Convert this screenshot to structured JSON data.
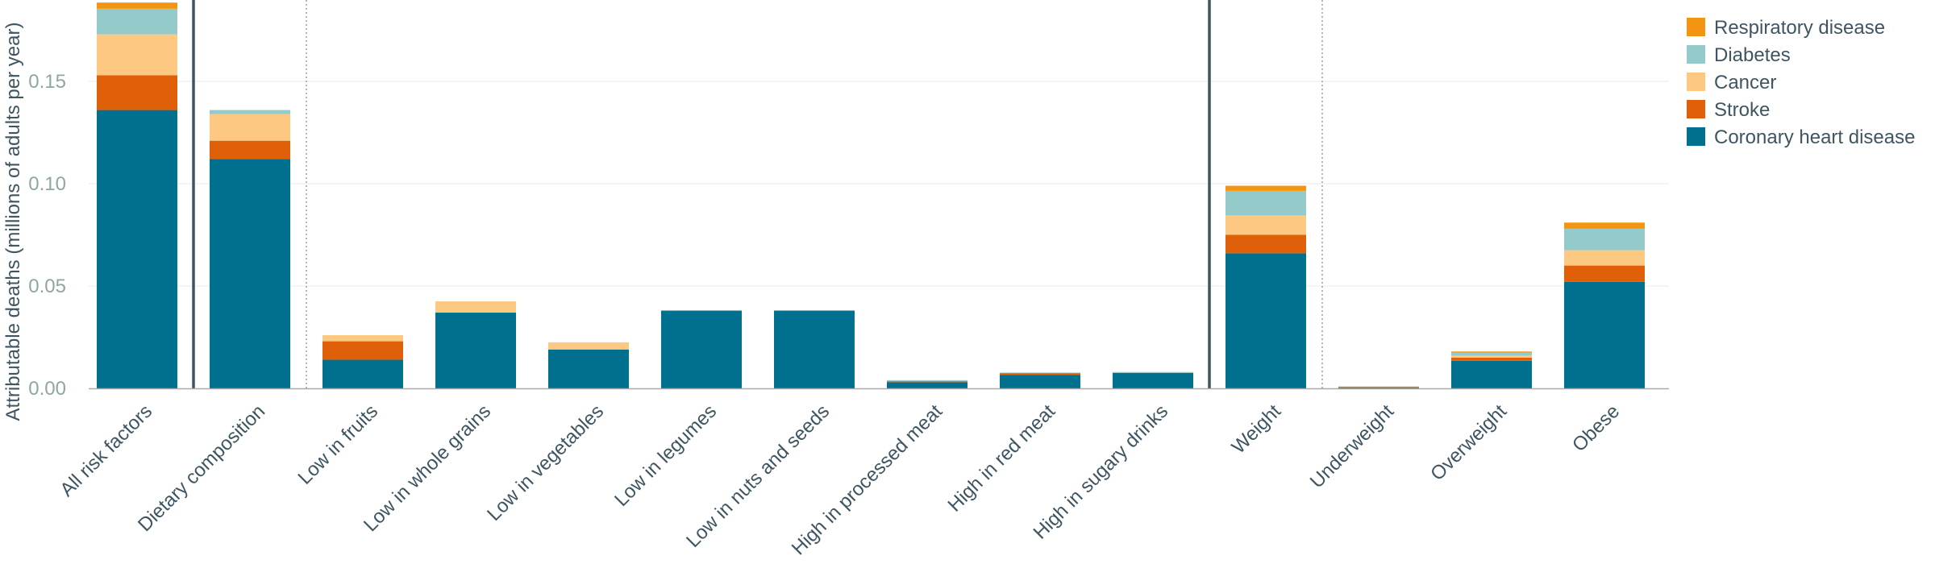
{
  "chart_data": {
    "type": "bar",
    "stacked": true,
    "title": "",
    "xlabel": "",
    "ylabel": "Attributable deaths (millions of adults per year)",
    "ylim": [
      0,
      0.19
    ],
    "yticks": [
      0.0,
      0.05,
      0.1,
      0.15
    ],
    "ytick_labels": [
      "0.00",
      "0.05",
      "0.10",
      "0.15"
    ],
    "grid": true,
    "legend_position": "top-right",
    "categories": [
      "All risk factors",
      "Dietary composition",
      "Low in fruits",
      "Low in whole grains",
      "Low in vegetables",
      "Low in legumes",
      "Low in nuts and seeds",
      "High in processed meat",
      "High in red meat",
      "High in sugary drinks",
      "Weight",
      "Underweight",
      "Overweight",
      "Obese"
    ],
    "series": [
      {
        "name": "Coronary heart disease",
        "color": "#00708f",
        "values": [
          0.136,
          0.112,
          0.014,
          0.037,
          0.019,
          0.038,
          0.038,
          0.003,
          0.0065,
          0.0075,
          0.066,
          0.0005,
          0.0135,
          0.052
        ]
      },
      {
        "name": "Stroke",
        "color": "#e0600a",
        "values": [
          0.017,
          0.009,
          0.009,
          0.0,
          0.0,
          0.0,
          0.0,
          0.0005,
          0.001,
          0.0,
          0.009,
          0.0003,
          0.0015,
          0.008
        ]
      },
      {
        "name": "Cancer",
        "color": "#fcc882",
        "values": [
          0.02,
          0.013,
          0.003,
          0.0055,
          0.0035,
          0.0,
          0.0,
          0.0,
          0.0,
          0.0,
          0.0095,
          0.0001,
          0.001,
          0.0075
        ]
      },
      {
        "name": "Diabetes",
        "color": "#94cac9",
        "values": [
          0.0125,
          0.002,
          0.0,
          0.0,
          0.0,
          0.0,
          0.0,
          0.0005,
          0.0002,
          0.0005,
          0.012,
          0.0001,
          0.0015,
          0.0105
        ]
      },
      {
        "name": "Respiratory disease",
        "color": "#f39511",
        "values": [
          0.003,
          0.0,
          0.0,
          0.0,
          0.0,
          0.0,
          0.0,
          0.0,
          0.0,
          0.0,
          0.0025,
          0.0,
          0.0005,
          0.003
        ]
      }
    ],
    "legend_order": [
      "Respiratory disease",
      "Diabetes",
      "Cancer",
      "Stroke",
      "Coronary heart disease"
    ],
    "group_separators": [
      {
        "between": [
          0,
          1
        ],
        "style": "solid"
      },
      {
        "between": [
          1,
          2
        ],
        "style": "dotted"
      },
      {
        "between": [
          9,
          10
        ],
        "style": "solid"
      },
      {
        "between": [
          10,
          11
        ],
        "style": "dotted"
      }
    ]
  }
}
